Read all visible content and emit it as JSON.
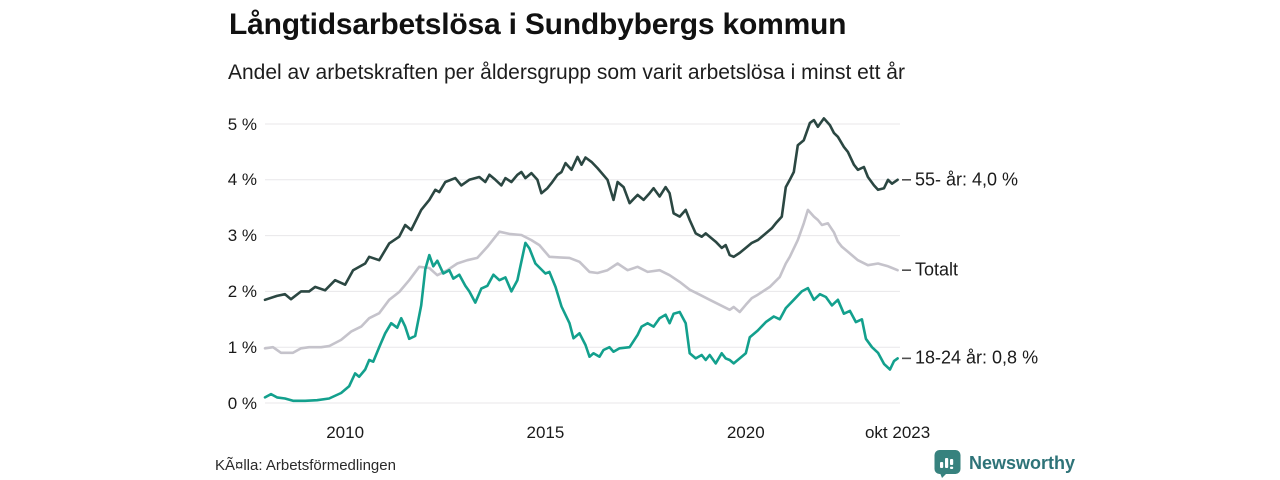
{
  "colors": {
    "series_55": "#2b4742",
    "series_total": "#c5c3cb",
    "series_18_24": "#13a08d",
    "gridline": "#e8e7ea",
    "tick_dash": "#4f4f4f",
    "brand_teal": "#37827e",
    "brand_text": "#2e7378"
  },
  "footer": {
    "source": "KÃ¤lla: Arbetsförmedlingen",
    "brand": "Newsworthy"
  },
  "chart_data": {
    "type": "line",
    "title": "Långtidsarbetslösa i Sundbybergs kommun",
    "subtitle": "Andel av arbetskraften per åldersgrupp som varit arbetslösa i minst ett år",
    "grid": true,
    "legend_position": "right-end-labels",
    "x_axis": {
      "min": 2008.0,
      "max": 2023.85,
      "ticks": [
        {
          "x": 2010,
          "label": "2010"
        },
        {
          "x": 2015,
          "label": "2015"
        },
        {
          "x": 2020,
          "label": "2020"
        },
        {
          "x": 2023.79,
          "label": "okt 2023"
        }
      ]
    },
    "y_axis": {
      "min": 0,
      "max": 5,
      "ticks": [
        {
          "v": 0,
          "label": "0 %"
        },
        {
          "v": 1,
          "label": "1 %"
        },
        {
          "v": 2,
          "label": "2 %"
        },
        {
          "v": 3,
          "label": "3 %"
        },
        {
          "v": 4,
          "label": "4 %"
        },
        {
          "v": 5,
          "label": "5 %"
        }
      ]
    },
    "series": [
      {
        "id": "55-ar",
        "name": "55- år",
        "end_label": "55- år: 4,0 %",
        "end_value": "4,0 %",
        "color": "#2b4742",
        "z": 2,
        "points": [
          [
            2008.0,
            1.85
          ],
          [
            2008.3,
            1.92
          ],
          [
            2008.5,
            1.95
          ],
          [
            2008.65,
            1.86
          ],
          [
            2008.9,
            2.0
          ],
          [
            2009.1,
            2.0
          ],
          [
            2009.25,
            2.08
          ],
          [
            2009.5,
            2.02
          ],
          [
            2009.75,
            2.2
          ],
          [
            2010.0,
            2.12
          ],
          [
            2010.2,
            2.38
          ],
          [
            2010.5,
            2.5
          ],
          [
            2010.6,
            2.62
          ],
          [
            2010.85,
            2.56
          ],
          [
            2011.1,
            2.86
          ],
          [
            2011.35,
            2.98
          ],
          [
            2011.5,
            3.19
          ],
          [
            2011.65,
            3.1
          ],
          [
            2011.9,
            3.46
          ],
          [
            2012.1,
            3.64
          ],
          [
            2012.25,
            3.82
          ],
          [
            2012.35,
            3.78
          ],
          [
            2012.5,
            3.96
          ],
          [
            2012.75,
            4.03
          ],
          [
            2012.9,
            3.9
          ],
          [
            2013.1,
            4.0
          ],
          [
            2013.35,
            4.05
          ],
          [
            2013.5,
            3.96
          ],
          [
            2013.6,
            4.09
          ],
          [
            2013.75,
            4.0
          ],
          [
            2013.9,
            3.9
          ],
          [
            2014.0,
            4.03
          ],
          [
            2014.15,
            3.96
          ],
          [
            2014.3,
            4.09
          ],
          [
            2014.4,
            4.14
          ],
          [
            2014.5,
            4.03
          ],
          [
            2014.65,
            4.12
          ],
          [
            2014.8,
            4.0
          ],
          [
            2014.9,
            3.76
          ],
          [
            2015.05,
            3.85
          ],
          [
            2015.15,
            3.94
          ],
          [
            2015.3,
            4.09
          ],
          [
            2015.4,
            4.14
          ],
          [
            2015.5,
            4.3
          ],
          [
            2015.65,
            4.18
          ],
          [
            2015.8,
            4.41
          ],
          [
            2015.9,
            4.27
          ],
          [
            2016.0,
            4.4
          ],
          [
            2016.15,
            4.32
          ],
          [
            2016.3,
            4.21
          ],
          [
            2016.55,
            4.0
          ],
          [
            2016.7,
            3.64
          ],
          [
            2016.8,
            3.96
          ],
          [
            2016.95,
            3.87
          ],
          [
            2017.1,
            3.58
          ],
          [
            2017.3,
            3.73
          ],
          [
            2017.45,
            3.64
          ],
          [
            2017.6,
            3.76
          ],
          [
            2017.7,
            3.85
          ],
          [
            2017.85,
            3.7
          ],
          [
            2018.0,
            3.87
          ],
          [
            2018.1,
            3.76
          ],
          [
            2018.2,
            3.4
          ],
          [
            2018.35,
            3.34
          ],
          [
            2018.5,
            3.46
          ],
          [
            2018.6,
            3.28
          ],
          [
            2018.75,
            3.04
          ],
          [
            2018.9,
            2.98
          ],
          [
            2019.0,
            3.04
          ],
          [
            2019.1,
            2.98
          ],
          [
            2019.25,
            2.89
          ],
          [
            2019.4,
            2.78
          ],
          [
            2019.5,
            2.83
          ],
          [
            2019.6,
            2.65
          ],
          [
            2019.7,
            2.62
          ],
          [
            2019.85,
            2.69
          ],
          [
            2020.0,
            2.78
          ],
          [
            2020.15,
            2.87
          ],
          [
            2020.3,
            2.92
          ],
          [
            2020.4,
            2.98
          ],
          [
            2020.5,
            3.04
          ],
          [
            2020.65,
            3.13
          ],
          [
            2020.75,
            3.22
          ],
          [
            2020.9,
            3.34
          ],
          [
            2021.0,
            3.87
          ],
          [
            2021.1,
            4.0
          ],
          [
            2021.2,
            4.14
          ],
          [
            2021.3,
            4.62
          ],
          [
            2021.45,
            4.71
          ],
          [
            2021.6,
            5.02
          ],
          [
            2021.7,
            5.07
          ],
          [
            2021.8,
            4.95
          ],
          [
            2021.95,
            5.1
          ],
          [
            2022.1,
            4.98
          ],
          [
            2022.2,
            4.84
          ],
          [
            2022.3,
            4.77
          ],
          [
            2022.45,
            4.59
          ],
          [
            2022.55,
            4.5
          ],
          [
            2022.7,
            4.27
          ],
          [
            2022.8,
            4.18
          ],
          [
            2022.95,
            4.23
          ],
          [
            2023.05,
            4.05
          ],
          [
            2023.2,
            3.9
          ],
          [
            2023.3,
            3.82
          ],
          [
            2023.45,
            3.85
          ],
          [
            2023.55,
            4.0
          ],
          [
            2023.65,
            3.93
          ],
          [
            2023.79,
            4.0
          ]
        ]
      },
      {
        "id": "totalt",
        "name": "Totalt",
        "end_label": "Totalt",
        "end_value": "",
        "color": "#c5c3cb",
        "z": 1,
        "points": [
          [
            2008.0,
            0.98
          ],
          [
            2008.2,
            1.0
          ],
          [
            2008.4,
            0.9
          ],
          [
            2008.7,
            0.9
          ],
          [
            2008.9,
            0.98
          ],
          [
            2009.1,
            1.0
          ],
          [
            2009.4,
            1.0
          ],
          [
            2009.6,
            1.02
          ],
          [
            2009.9,
            1.13
          ],
          [
            2010.15,
            1.28
          ],
          [
            2010.4,
            1.37
          ],
          [
            2010.6,
            1.52
          ],
          [
            2010.85,
            1.61
          ],
          [
            2011.1,
            1.85
          ],
          [
            2011.35,
            1.99
          ],
          [
            2011.6,
            2.2
          ],
          [
            2011.85,
            2.44
          ],
          [
            2012.1,
            2.42
          ],
          [
            2012.3,
            2.29
          ],
          [
            2012.55,
            2.38
          ],
          [
            2012.8,
            2.5
          ],
          [
            2013.05,
            2.56
          ],
          [
            2013.3,
            2.6
          ],
          [
            2013.55,
            2.8
          ],
          [
            2013.85,
            3.07
          ],
          [
            2014.1,
            3.03
          ],
          [
            2014.4,
            3.01
          ],
          [
            2014.65,
            2.92
          ],
          [
            2014.85,
            2.83
          ],
          [
            2015.1,
            2.62
          ],
          [
            2015.35,
            2.61
          ],
          [
            2015.6,
            2.6
          ],
          [
            2015.85,
            2.53
          ],
          [
            2016.1,
            2.35
          ],
          [
            2016.3,
            2.33
          ],
          [
            2016.55,
            2.38
          ],
          [
            2016.8,
            2.5
          ],
          [
            2017.05,
            2.38
          ],
          [
            2017.3,
            2.44
          ],
          [
            2017.55,
            2.35
          ],
          [
            2017.85,
            2.38
          ],
          [
            2018.1,
            2.29
          ],
          [
            2018.35,
            2.17
          ],
          [
            2018.6,
            2.03
          ],
          [
            2018.85,
            1.94
          ],
          [
            2019.1,
            1.85
          ],
          [
            2019.35,
            1.76
          ],
          [
            2019.6,
            1.67
          ],
          [
            2019.7,
            1.72
          ],
          [
            2019.85,
            1.63
          ],
          [
            2020.0,
            1.76
          ],
          [
            2020.15,
            1.88
          ],
          [
            2020.3,
            1.94
          ],
          [
            2020.6,
            2.08
          ],
          [
            2020.85,
            2.26
          ],
          [
            2021.0,
            2.5
          ],
          [
            2021.1,
            2.62
          ],
          [
            2021.3,
            2.92
          ],
          [
            2021.45,
            3.22
          ],
          [
            2021.55,
            3.46
          ],
          [
            2021.7,
            3.34
          ],
          [
            2021.8,
            3.28
          ],
          [
            2021.9,
            3.19
          ],
          [
            2022.05,
            3.22
          ],
          [
            2022.2,
            3.06
          ],
          [
            2022.3,
            2.89
          ],
          [
            2022.4,
            2.8
          ],
          [
            2022.55,
            2.71
          ],
          [
            2022.8,
            2.56
          ],
          [
            2023.05,
            2.47
          ],
          [
            2023.3,
            2.5
          ],
          [
            2023.55,
            2.45
          ],
          [
            2023.79,
            2.38
          ]
        ]
      },
      {
        "id": "18-24-ar",
        "name": "18-24 år",
        "end_label": "18-24 år: 0,8 %",
        "end_value": "0,8 %",
        "color": "#13a08d",
        "z": 3,
        "points": [
          [
            2008.0,
            0.1
          ],
          [
            2008.15,
            0.16
          ],
          [
            2008.3,
            0.1
          ],
          [
            2008.5,
            0.08
          ],
          [
            2008.7,
            0.04
          ],
          [
            2009.0,
            0.04
          ],
          [
            2009.3,
            0.05
          ],
          [
            2009.6,
            0.08
          ],
          [
            2009.9,
            0.18
          ],
          [
            2010.1,
            0.3
          ],
          [
            2010.25,
            0.53
          ],
          [
            2010.35,
            0.47
          ],
          [
            2010.5,
            0.6
          ],
          [
            2010.6,
            0.77
          ],
          [
            2010.7,
            0.74
          ],
          [
            2010.85,
            1.0
          ],
          [
            2011.0,
            1.25
          ],
          [
            2011.15,
            1.43
          ],
          [
            2011.3,
            1.35
          ],
          [
            2011.4,
            1.52
          ],
          [
            2011.5,
            1.37
          ],
          [
            2011.6,
            1.15
          ],
          [
            2011.75,
            1.2
          ],
          [
            2011.9,
            1.75
          ],
          [
            2012.0,
            2.4
          ],
          [
            2012.1,
            2.65
          ],
          [
            2012.2,
            2.45
          ],
          [
            2012.3,
            2.55
          ],
          [
            2012.45,
            2.32
          ],
          [
            2012.6,
            2.38
          ],
          [
            2012.7,
            2.23
          ],
          [
            2012.85,
            2.3
          ],
          [
            2013.0,
            2.1
          ],
          [
            2013.1,
            2.0
          ],
          [
            2013.25,
            1.8
          ],
          [
            2013.4,
            2.05
          ],
          [
            2013.55,
            2.1
          ],
          [
            2013.7,
            2.3
          ],
          [
            2013.85,
            2.2
          ],
          [
            2014.0,
            2.25
          ],
          [
            2014.15,
            2.0
          ],
          [
            2014.3,
            2.2
          ],
          [
            2014.5,
            2.87
          ],
          [
            2014.6,
            2.77
          ],
          [
            2014.75,
            2.5
          ],
          [
            2015.0,
            2.32
          ],
          [
            2015.1,
            2.35
          ],
          [
            2015.25,
            2.08
          ],
          [
            2015.4,
            1.73
          ],
          [
            2015.6,
            1.43
          ],
          [
            2015.7,
            1.16
          ],
          [
            2015.85,
            1.25
          ],
          [
            2016.0,
            1.04
          ],
          [
            2016.1,
            0.83
          ],
          [
            2016.2,
            0.89
          ],
          [
            2016.35,
            0.83
          ],
          [
            2016.45,
            0.95
          ],
          [
            2016.6,
            1.0
          ],
          [
            2016.7,
            0.92
          ],
          [
            2016.85,
            0.98
          ],
          [
            2017.1,
            1.0
          ],
          [
            2017.3,
            1.22
          ],
          [
            2017.4,
            1.37
          ],
          [
            2017.55,
            1.43
          ],
          [
            2017.7,
            1.37
          ],
          [
            2017.85,
            1.52
          ],
          [
            2018.0,
            1.58
          ],
          [
            2018.1,
            1.43
          ],
          [
            2018.2,
            1.6
          ],
          [
            2018.35,
            1.63
          ],
          [
            2018.5,
            1.43
          ],
          [
            2018.6,
            0.89
          ],
          [
            2018.75,
            0.8
          ],
          [
            2018.9,
            0.86
          ],
          [
            2019.0,
            0.77
          ],
          [
            2019.1,
            0.86
          ],
          [
            2019.25,
            0.71
          ],
          [
            2019.4,
            0.89
          ],
          [
            2019.5,
            0.8
          ],
          [
            2019.6,
            0.77
          ],
          [
            2019.7,
            0.71
          ],
          [
            2019.85,
            0.8
          ],
          [
            2020.0,
            0.89
          ],
          [
            2020.1,
            1.18
          ],
          [
            2020.3,
            1.3
          ],
          [
            2020.5,
            1.45
          ],
          [
            2020.7,
            1.55
          ],
          [
            2020.85,
            1.5
          ],
          [
            2021.0,
            1.7
          ],
          [
            2021.2,
            1.85
          ],
          [
            2021.4,
            2.0
          ],
          [
            2021.55,
            2.06
          ],
          [
            2021.7,
            1.85
          ],
          [
            2021.85,
            1.95
          ],
          [
            2022.0,
            1.9
          ],
          [
            2022.15,
            1.75
          ],
          [
            2022.3,
            1.85
          ],
          [
            2022.45,
            1.6
          ],
          [
            2022.6,
            1.65
          ],
          [
            2022.75,
            1.45
          ],
          [
            2022.9,
            1.5
          ],
          [
            2023.0,
            1.15
          ],
          [
            2023.15,
            1.0
          ],
          [
            2023.3,
            0.9
          ],
          [
            2023.45,
            0.7
          ],
          [
            2023.6,
            0.6
          ],
          [
            2023.7,
            0.75
          ],
          [
            2023.79,
            0.8
          ]
        ]
      }
    ]
  }
}
